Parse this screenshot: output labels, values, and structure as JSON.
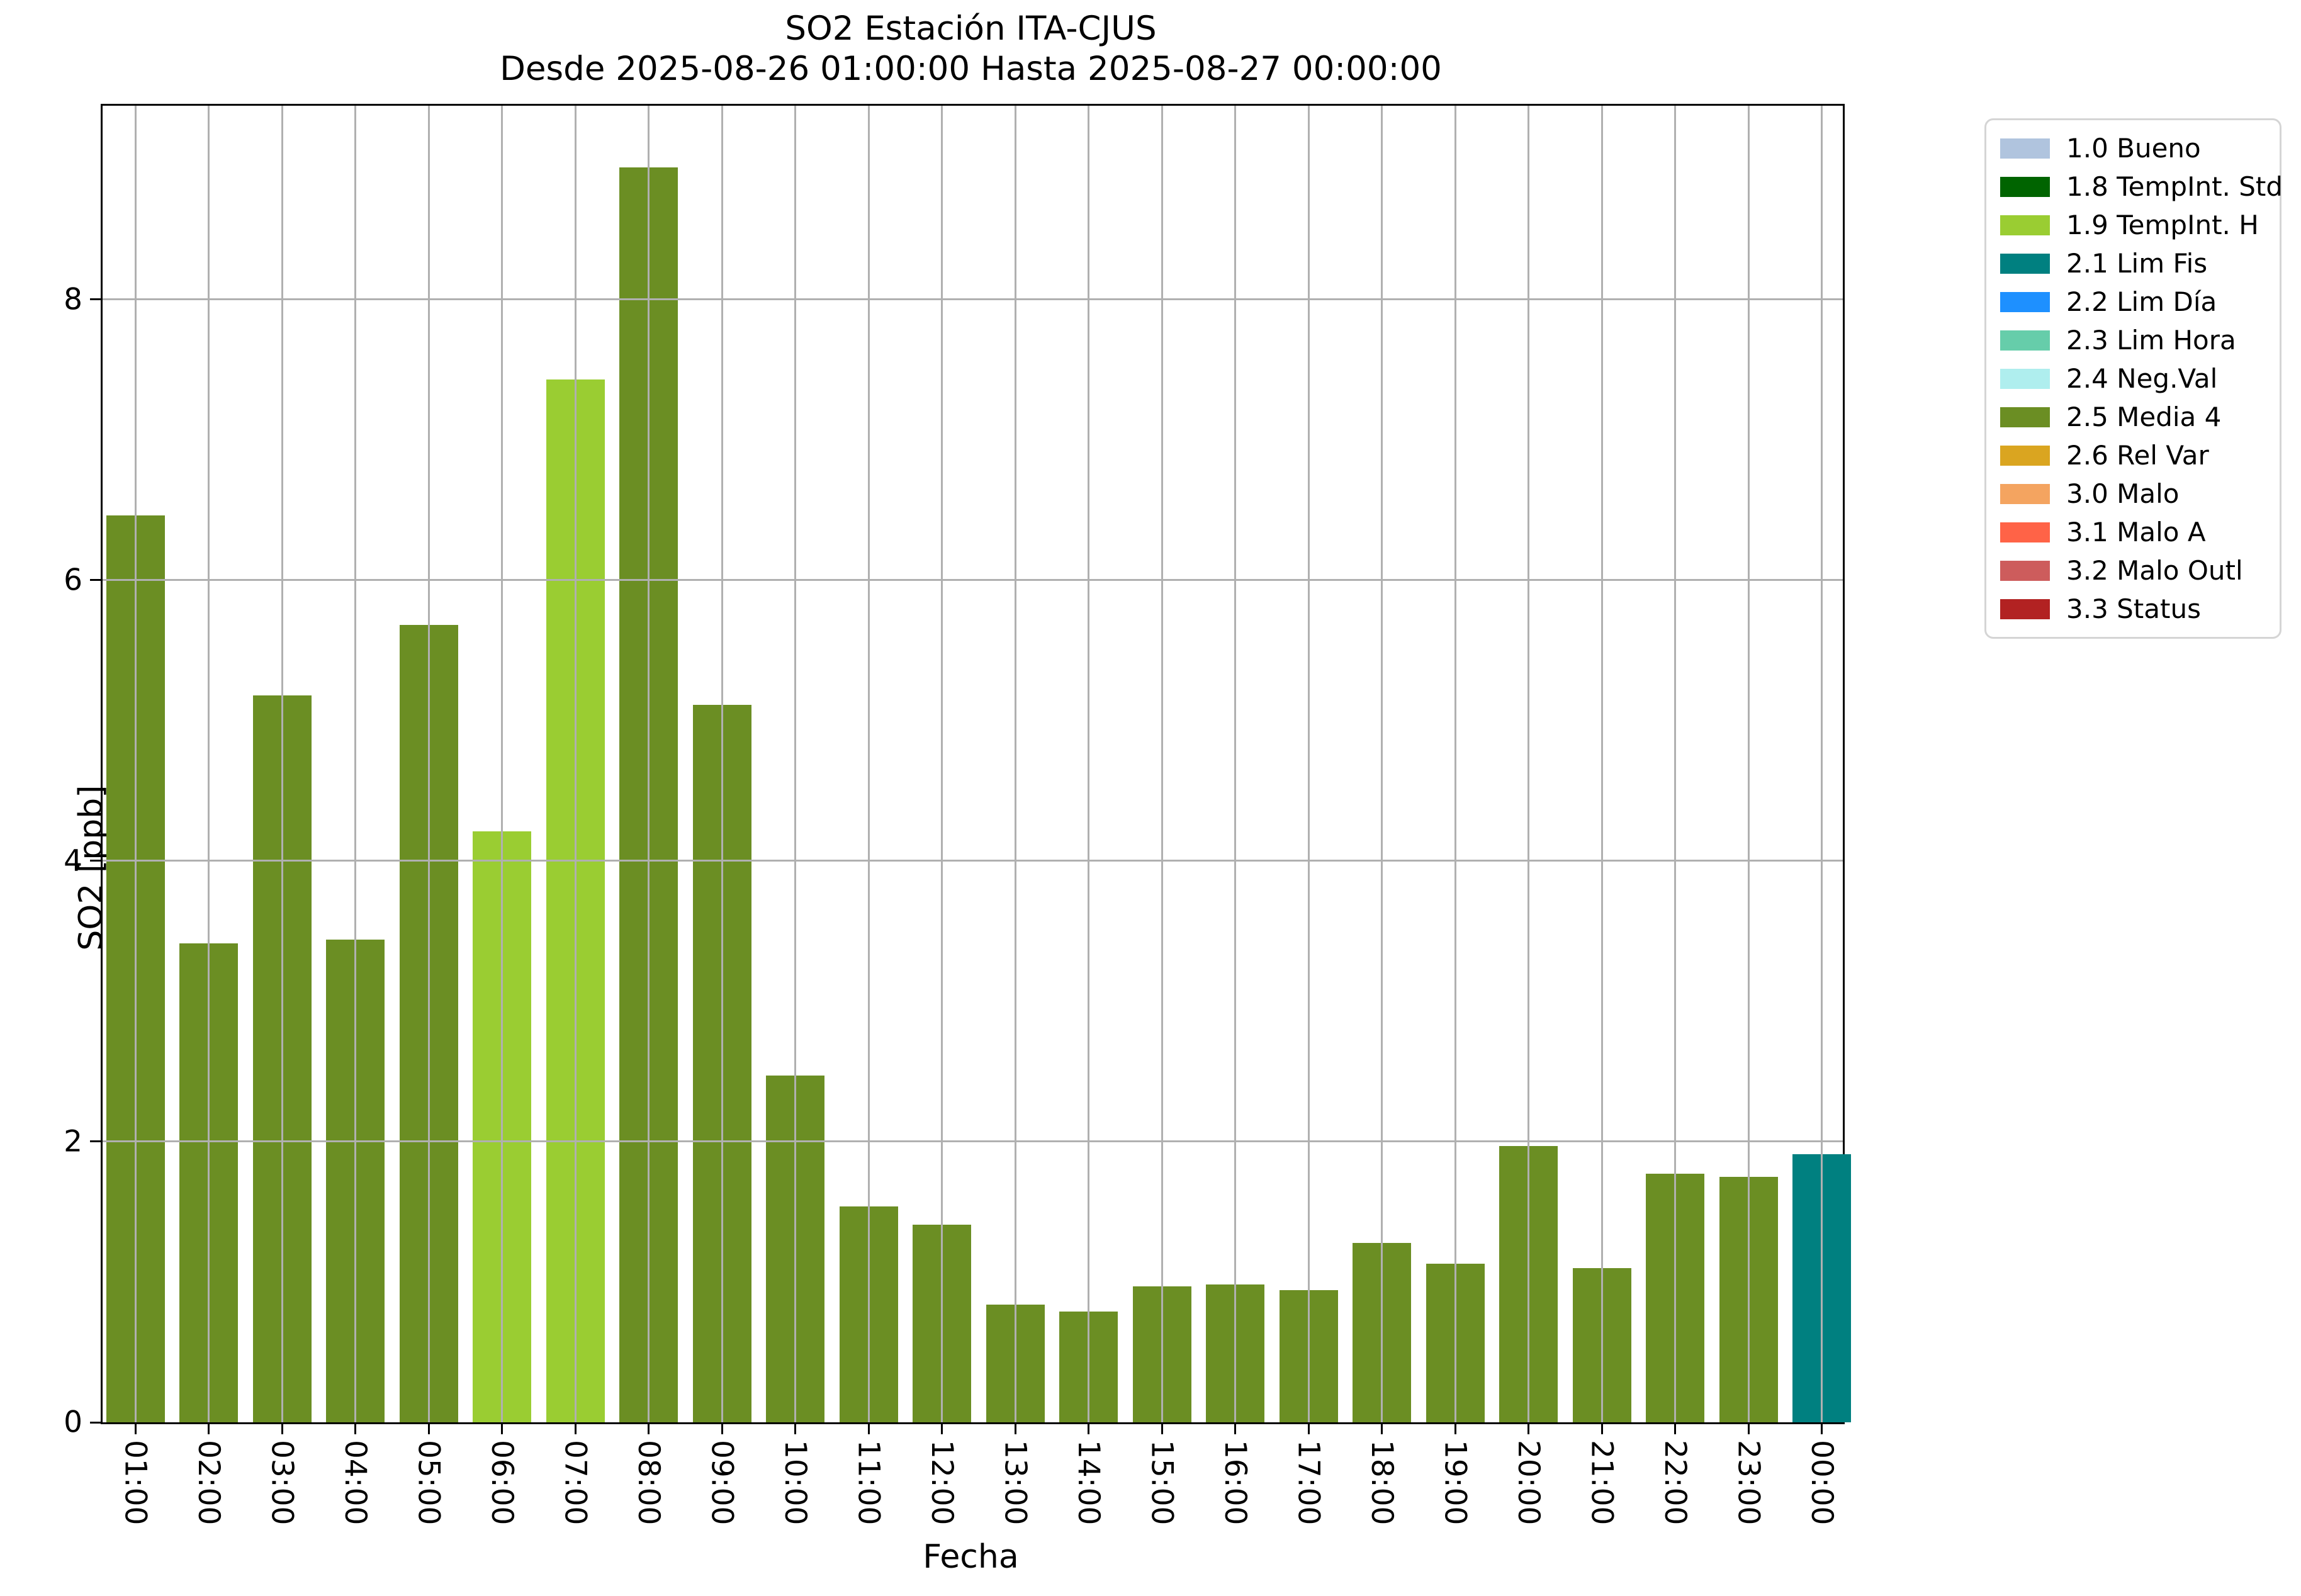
{
  "chart_data": {
    "type": "bar",
    "title": "SO2 Estación ITA-CJUS",
    "subtitle": "Desde 2025-08-26 01:00:00 Hasta 2025-08-27 00:00:00",
    "xlabel": "Fecha",
    "ylabel": "SO2 [ppb]",
    "ylim": [
      0,
      9.38
    ],
    "yticks": [
      0,
      2,
      4,
      6,
      8
    ],
    "grid": true,
    "legend_position": "outside-upper-right",
    "categories": [
      "01:00",
      "02:00",
      "03:00",
      "04:00",
      "05:00",
      "06:00",
      "07:00",
      "08:00",
      "09:00",
      "10:00",
      "11:00",
      "12:00",
      "13:00",
      "14:00",
      "15:00",
      "16:00",
      "17:00",
      "18:00",
      "19:00",
      "20:00",
      "21:00",
      "22:00",
      "23:00",
      "00:00"
    ],
    "values": [
      6.46,
      3.41,
      5.18,
      3.44,
      5.68,
      4.21,
      7.43,
      8.94,
      5.11,
      2.47,
      1.54,
      1.41,
      0.84,
      0.79,
      0.97,
      0.98,
      0.94,
      1.28,
      1.13,
      1.97,
      1.1,
      1.77,
      1.75,
      1.91
    ],
    "bar_status": [
      "2.5",
      "2.5",
      "2.5",
      "2.5",
      "2.5",
      "1.9",
      "1.9",
      "2.5",
      "2.5",
      "2.5",
      "2.5",
      "2.5",
      "2.5",
      "2.5",
      "2.5",
      "2.5",
      "2.5",
      "2.5",
      "2.5",
      "2.5",
      "2.5",
      "2.5",
      "2.5",
      "2.1"
    ],
    "legend": [
      {
        "code": "1.0",
        "label": "1.0 Bueno",
        "color": "#B0C4DE"
      },
      {
        "code": "1.8",
        "label": "1.8 TempInt. Std",
        "color": "#006400"
      },
      {
        "code": "1.9",
        "label": "1.9 TempInt. H",
        "color": "#9ACD32"
      },
      {
        "code": "2.1",
        "label": "2.1 Lim Fis",
        "color": "#008080"
      },
      {
        "code": "2.2",
        "label": "2.2 Lim Día",
        "color": "#1E90FF"
      },
      {
        "code": "2.3",
        "label": "2.3 Lim Hora",
        "color": "#66CDAA"
      },
      {
        "code": "2.4",
        "label": "2.4 Neg.Val",
        "color": "#AFEEEE"
      },
      {
        "code": "2.5",
        "label": "2.5 Media 4",
        "color": "#6B8E23"
      },
      {
        "code": "2.6",
        "label": "2.6 Rel Var",
        "color": "#DAA520"
      },
      {
        "code": "3.0",
        "label": "3.0 Malo",
        "color": "#F4A460"
      },
      {
        "code": "3.1",
        "label": "3.1 Malo A",
        "color": "#FF6347"
      },
      {
        "code": "3.2",
        "label": "3.2 Malo Outl",
        "color": "#CD5C5C"
      },
      {
        "code": "3.3",
        "label": "3.3 Status",
        "color": "#B22222"
      }
    ]
  },
  "colors": {
    "grid": "#b0b0b0",
    "axis": "#000000",
    "background": "#ffffff",
    "legend_border": "#d5d5d5"
  }
}
